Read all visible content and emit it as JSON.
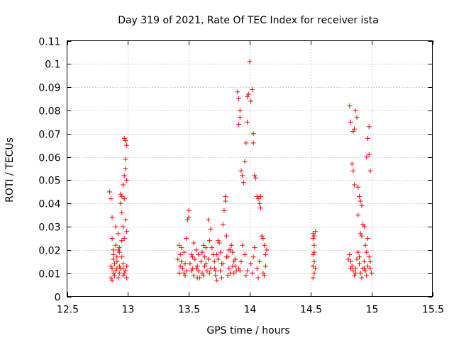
{
  "chart_data": {
    "type": "scatter",
    "title": "Day 319 of 2021, Rate Of TEC Index for receiver ista",
    "xlabel": "GPS time / hours",
    "ylabel": "ROTI / TECUs",
    "xlim": [
      12.5,
      15.5
    ],
    "ylim": [
      0,
      0.11
    ],
    "x_ticks": [
      12.5,
      13,
      13.5,
      14,
      14.5,
      15,
      15.5
    ],
    "x_tick_labels": [
      "12.5",
      "13",
      "13.5",
      "14",
      "14.5",
      "15",
      "15.5"
    ],
    "y_ticks": [
      0,
      0.01,
      0.02,
      0.03,
      0.04,
      0.05,
      0.06,
      0.07,
      0.08,
      0.09,
      0.1,
      0.11
    ],
    "y_tick_labels": [
      "0",
      "0.01",
      "0.02",
      "0.03",
      "0.04",
      "0.05",
      "0.06",
      "0.07",
      "0.08",
      "0.09",
      "0.1",
      "0.11"
    ],
    "grid": true,
    "marker": "+",
    "color": "#ff0000",
    "series": [
      {
        "name": "ROTI",
        "points": [
          [
            12.85,
            0.045
          ],
          [
            12.86,
            0.042
          ],
          [
            12.87,
            0.034
          ],
          [
            12.87,
            0.025
          ],
          [
            12.88,
            0.018
          ],
          [
            12.88,
            0.016
          ],
          [
            12.86,
            0.013
          ],
          [
            12.87,
            0.012
          ],
          [
            12.88,
            0.01
          ],
          [
            12.89,
            0.009
          ],
          [
            12.86,
            0.008
          ],
          [
            12.87,
            0.007
          ],
          [
            12.9,
            0.022
          ],
          [
            12.9,
            0.03
          ],
          [
            12.91,
            0.015
          ],
          [
            12.91,
            0.012
          ],
          [
            12.92,
            0.02
          ],
          [
            12.92,
            0.027
          ],
          [
            12.93,
            0.019
          ],
          [
            12.93,
            0.013
          ],
          [
            12.94,
            0.04
          ],
          [
            12.94,
            0.044
          ],
          [
            12.95,
            0.043
          ],
          [
            12.95,
            0.036
          ],
          [
            12.96,
            0.048
          ],
          [
            12.96,
            0.012
          ],
          [
            12.97,
            0.052
          ],
          [
            12.97,
            0.068
          ],
          [
            12.98,
            0.067
          ],
          [
            12.98,
            0.059
          ],
          [
            12.98,
            0.055
          ],
          [
            12.99,
            0.065
          ],
          [
            12.99,
            0.05
          ],
          [
            12.97,
            0.042
          ],
          [
            12.98,
            0.033
          ],
          [
            12.96,
            0.03
          ],
          [
            12.99,
            0.028
          ],
          [
            12.97,
            0.025
          ],
          [
            12.95,
            0.017
          ],
          [
            12.96,
            0.014
          ],
          [
            12.99,
            0.013
          ],
          [
            12.98,
            0.011
          ],
          [
            12.97,
            0.01
          ],
          [
            12.96,
            0.009
          ],
          [
            12.99,
            0.008
          ],
          [
            12.94,
            0.012
          ],
          [
            12.93,
            0.01
          ],
          [
            12.92,
            0.008
          ],
          [
            12.9,
            0.011
          ],
          [
            12.89,
            0.014
          ],
          [
            12.91,
            0.017
          ],
          [
            12.93,
            0.021
          ],
          [
            12.95,
            0.024
          ],
          [
            12.88,
            0.02
          ],
          [
            13.42,
            0.022
          ],
          [
            13.43,
            0.018
          ],
          [
            13.44,
            0.015
          ],
          [
            13.45,
            0.012
          ],
          [
            13.46,
            0.01
          ],
          [
            13.47,
            0.014
          ],
          [
            13.48,
            0.025
          ],
          [
            13.49,
            0.033
          ],
          [
            13.5,
            0.037
          ],
          [
            13.5,
            0.034
          ],
          [
            13.52,
            0.018
          ],
          [
            13.53,
            0.012
          ],
          [
            13.54,
            0.009
          ],
          [
            13.55,
            0.016
          ],
          [
            13.56,
            0.02
          ],
          [
            13.57,
            0.013
          ],
          [
            13.58,
            0.011
          ],
          [
            13.59,
            0.008
          ],
          [
            13.6,
            0.015
          ],
          [
            13.61,
            0.019
          ],
          [
            13.62,
            0.022
          ],
          [
            13.63,
            0.017
          ],
          [
            13.64,
            0.014
          ],
          [
            13.65,
            0.011
          ],
          [
            13.66,
            0.033
          ],
          [
            13.67,
            0.024
          ],
          [
            13.68,
            0.029
          ],
          [
            13.69,
            0.021
          ],
          [
            13.7,
            0.018
          ],
          [
            13.71,
            0.012
          ],
          [
            13.72,
            0.009
          ],
          [
            13.73,
            0.007
          ],
          [
            13.74,
            0.016
          ],
          [
            13.75,
            0.023
          ],
          [
            13.76,
            0.019
          ],
          [
            13.77,
            0.014
          ],
          [
            13.78,
            0.031
          ],
          [
            13.79,
            0.037
          ],
          [
            13.8,
            0.043
          ],
          [
            13.8,
            0.041
          ],
          [
            13.81,
            0.026
          ],
          [
            13.82,
            0.017
          ],
          [
            13.83,
            0.012
          ],
          [
            13.84,
            0.01
          ],
          [
            13.85,
            0.022
          ],
          [
            13.86,
            0.019
          ],
          [
            13.87,
            0.015
          ],
          [
            13.88,
            0.013
          ],
          [
            13.89,
            0.011
          ],
          [
            13.9,
            0.088
          ],
          [
            13.91,
            0.085
          ],
          [
            13.92,
            0.08
          ],
          [
            13.92,
            0.077
          ],
          [
            13.91,
            0.074
          ],
          [
            13.93,
            0.054
          ],
          [
            13.94,
            0.052
          ],
          [
            13.95,
            0.049
          ],
          [
            13.96,
            0.058
          ],
          [
            13.97,
            0.066
          ],
          [
            13.98,
            0.075
          ],
          [
            13.98,
            0.086
          ],
          [
            13.99,
            0.087
          ],
          [
            14.0,
            0.101
          ],
          [
            14.01,
            0.084
          ],
          [
            14.02,
            0.089
          ],
          [
            14.03,
            0.07
          ],
          [
            14.03,
            0.066
          ],
          [
            14.04,
            0.052
          ],
          [
            14.05,
            0.051
          ],
          [
            14.06,
            0.043
          ],
          [
            14.07,
            0.042
          ],
          [
            14.08,
            0.04
          ],
          [
            14.09,
            0.038
          ],
          [
            14.09,
            0.043
          ],
          [
            14.1,
            0.026
          ],
          [
            14.11,
            0.025
          ],
          [
            14.12,
            0.022
          ],
          [
            14.13,
            0.018
          ],
          [
            13.41,
            0.016
          ],
          [
            13.43,
            0.013
          ],
          [
            13.46,
            0.019
          ],
          [
            13.48,
            0.011
          ],
          [
            13.51,
            0.014
          ],
          [
            13.53,
            0.017
          ],
          [
            13.56,
            0.012
          ],
          [
            13.58,
            0.018
          ],
          [
            13.61,
            0.01
          ],
          [
            13.63,
            0.013
          ],
          [
            13.66,
            0.016
          ],
          [
            13.68,
            0.012
          ],
          [
            13.71,
            0.015
          ],
          [
            13.73,
            0.018
          ],
          [
            13.76,
            0.011
          ],
          [
            13.78,
            0.014
          ],
          [
            13.81,
            0.017
          ],
          [
            13.83,
            0.02
          ],
          [
            13.86,
            0.013
          ],
          [
            13.88,
            0.016
          ],
          [
            13.91,
            0.012
          ],
          [
            13.93,
            0.015
          ],
          [
            13.96,
            0.018
          ],
          [
            13.98,
            0.011
          ],
          [
            14.01,
            0.014
          ],
          [
            14.03,
            0.017
          ],
          [
            14.06,
            0.012
          ],
          [
            14.08,
            0.015
          ],
          [
            14.11,
            0.01
          ],
          [
            14.13,
            0.013
          ],
          [
            13.42,
            0.01
          ],
          [
            13.47,
            0.009
          ],
          [
            13.52,
            0.011
          ],
          [
            13.57,
            0.008
          ],
          [
            13.62,
            0.009
          ],
          [
            13.67,
            0.01
          ],
          [
            13.72,
            0.011
          ],
          [
            13.77,
            0.008
          ],
          [
            13.82,
            0.009
          ],
          [
            13.87,
            0.01
          ],
          [
            13.92,
            0.011
          ],
          [
            13.97,
            0.009
          ],
          [
            14.02,
            0.01
          ],
          [
            14.07,
            0.008
          ],
          [
            14.12,
            0.009
          ],
          [
            13.44,
            0.021
          ],
          [
            13.54,
            0.023
          ],
          [
            13.64,
            0.021
          ],
          [
            13.74,
            0.024
          ],
          [
            13.84,
            0.02
          ],
          [
            13.94,
            0.022
          ],
          [
            14.04,
            0.021
          ],
          [
            14.14,
            0.02
          ],
          [
            14.52,
            0.027
          ],
          [
            14.52,
            0.025
          ],
          [
            14.53,
            0.022
          ],
          [
            14.52,
            0.018
          ],
          [
            14.53,
            0.015
          ],
          [
            14.52,
            0.013
          ],
          [
            14.53,
            0.01
          ],
          [
            14.52,
            0.008
          ],
          [
            14.53,
            0.026
          ],
          [
            14.54,
            0.028
          ],
          [
            14.53,
            0.019
          ],
          [
            14.54,
            0.012
          ],
          [
            14.82,
            0.082
          ],
          [
            14.83,
            0.075
          ],
          [
            14.85,
            0.071
          ],
          [
            14.86,
            0.072
          ],
          [
            14.87,
            0.08
          ],
          [
            14.88,
            0.077
          ],
          [
            14.84,
            0.057
          ],
          [
            14.85,
            0.054
          ],
          [
            14.86,
            0.048
          ],
          [
            14.89,
            0.047
          ],
          [
            14.9,
            0.043
          ],
          [
            14.91,
            0.041
          ],
          [
            14.92,
            0.039
          ],
          [
            14.89,
            0.035
          ],
          [
            14.93,
            0.031
          ],
          [
            14.94,
            0.03
          ],
          [
            14.91,
            0.027
          ],
          [
            14.92,
            0.026
          ],
          [
            14.95,
            0.022
          ],
          [
            14.96,
            0.019
          ],
          [
            14.97,
            0.068
          ],
          [
            14.98,
            0.073
          ],
          [
            14.98,
            0.061
          ],
          [
            14.96,
            0.06
          ],
          [
            14.99,
            0.054
          ],
          [
            14.97,
            0.025
          ],
          [
            14.82,
            0.018
          ],
          [
            14.83,
            0.015
          ],
          [
            14.84,
            0.013
          ],
          [
            14.85,
            0.011
          ],
          [
            14.86,
            0.009
          ],
          [
            14.87,
            0.012
          ],
          [
            14.88,
            0.016
          ],
          [
            14.89,
            0.019
          ],
          [
            14.9,
            0.014
          ],
          [
            14.91,
            0.01
          ],
          [
            14.92,
            0.008
          ],
          [
            14.93,
            0.012
          ],
          [
            14.94,
            0.015
          ],
          [
            14.95,
            0.011
          ],
          [
            14.96,
            0.009
          ],
          [
            14.97,
            0.013
          ],
          [
            14.98,
            0.017
          ],
          [
            14.99,
            0.012
          ],
          [
            15.0,
            0.01
          ],
          [
            14.81,
            0.016
          ],
          [
            14.83,
            0.012
          ],
          [
            14.87,
            0.01
          ],
          [
            14.9,
            0.017
          ],
          [
            14.94,
            0.012
          ],
          [
            14.99,
            0.015
          ]
        ]
      }
    ]
  }
}
